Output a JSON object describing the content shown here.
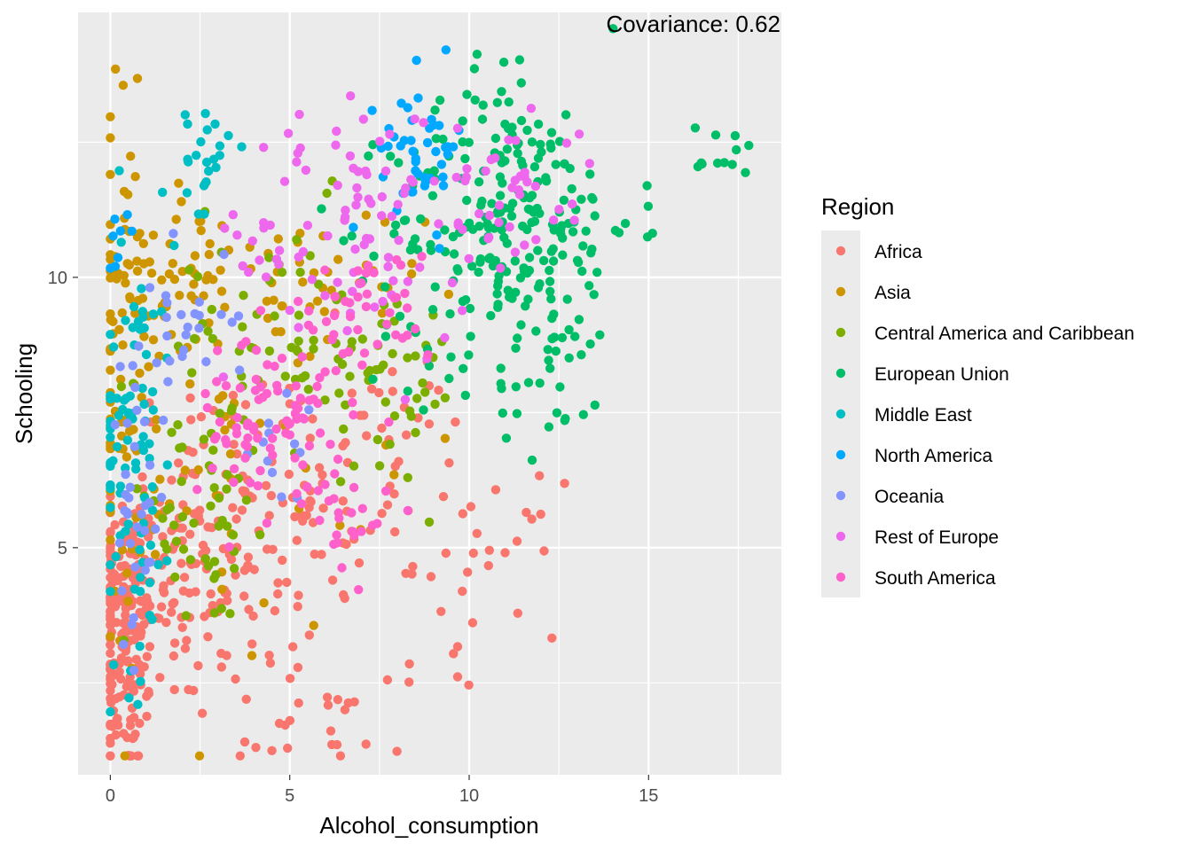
{
  "chart_data": {
    "type": "scatter",
    "title": "",
    "xlabel": "Alcohol_consumption",
    "ylabel": "Schooling",
    "xlim": [
      -0.9,
      18.7
    ],
    "ylim": [
      0.8,
      14.9
    ],
    "x_ticks": [
      0,
      5,
      10,
      15
    ],
    "y_ticks": [
      5,
      10
    ],
    "x_tick_labels": [
      "0",
      "5",
      "10",
      "15"
    ],
    "y_tick_labels": [
      "5",
      "10"
    ],
    "grid": true,
    "legend_title": "Region",
    "legend_position": "right",
    "annotation": "Covariance: 0.62",
    "background": "#ebebeb",
    "series": [
      {
        "name": "Africa",
        "color": "#F8766D",
        "clusters": [
          {
            "cx": 0.4,
            "cy": 3.4,
            "sx": 0.5,
            "sy": 1.4,
            "n": 170
          },
          {
            "cx": 1.8,
            "cy": 4.4,
            "sx": 1.2,
            "sy": 1.3,
            "n": 110
          },
          {
            "cx": 3.8,
            "cy": 5.6,
            "sx": 1.8,
            "sy": 1.2,
            "n": 80
          },
          {
            "cx": 6.5,
            "cy": 6.3,
            "sx": 2.0,
            "sy": 1.2,
            "n": 60
          },
          {
            "cx": 10.5,
            "cy": 4.8,
            "sx": 1.0,
            "sy": 0.7,
            "n": 25
          },
          {
            "cx": 6.0,
            "cy": 1.9,
            "sx": 2.3,
            "sy": 0.6,
            "n": 35
          }
        ]
      },
      {
        "name": "Asia",
        "color": "#CD9600",
        "clusters": [
          {
            "cx": 0.4,
            "cy": 8.0,
            "sx": 0.5,
            "sy": 2.8,
            "n": 80
          },
          {
            "cx": 1.8,
            "cy": 10.0,
            "sx": 0.9,
            "sy": 0.7,
            "n": 50
          },
          {
            "cx": 3.5,
            "cy": 7.4,
            "sx": 2.0,
            "sy": 2.0,
            "n": 55
          },
          {
            "cx": 5.5,
            "cy": 9.6,
            "sx": 1.6,
            "sy": 0.9,
            "n": 35
          }
        ]
      },
      {
        "name": "Central America and Caribbean",
        "color": "#7CAE00",
        "clusters": [
          {
            "cx": 2.5,
            "cy": 5.4,
            "sx": 1.2,
            "sy": 1.0,
            "n": 45
          },
          {
            "cx": 4.5,
            "cy": 8.6,
            "sx": 1.8,
            "sy": 1.3,
            "n": 70
          },
          {
            "cx": 7.5,
            "cy": 8.1,
            "sx": 1.5,
            "sy": 1.0,
            "n": 35
          }
        ]
      },
      {
        "name": "European Union",
        "color": "#00BE67",
        "clusters": [
          {
            "cx": 11.2,
            "cy": 11.0,
            "sx": 1.7,
            "sy": 1.1,
            "n": 210
          },
          {
            "cx": 11.0,
            "cy": 13.2,
            "sx": 0.8,
            "sy": 0.6,
            "n": 20
          },
          {
            "cx": 17.0,
            "cy": 12.3,
            "sx": 0.6,
            "sy": 0.3,
            "n": 12
          },
          {
            "cx": 12.3,
            "cy": 7.9,
            "sx": 0.9,
            "sy": 0.6,
            "n": 28
          },
          {
            "cx": 9.4,
            "cy": 8.7,
            "sx": 1.2,
            "sy": 0.6,
            "n": 20
          }
        ]
      },
      {
        "name": "Middle East",
        "color": "#00BFC4",
        "clusters": [
          {
            "cx": 0.6,
            "cy": 7.2,
            "sx": 0.6,
            "sy": 2.2,
            "n": 90
          },
          {
            "cx": 2.7,
            "cy": 12.2,
            "sx": 0.3,
            "sy": 0.5,
            "n": 22
          }
        ]
      },
      {
        "name": "North America",
        "color": "#00A9FF",
        "clusters": [
          {
            "cx": 8.7,
            "cy": 12.4,
            "sx": 0.6,
            "sy": 0.7,
            "n": 45
          },
          {
            "cx": 0.3,
            "cy": 10.9,
            "sx": 0.2,
            "sy": 0.3,
            "n": 8
          }
        ]
      },
      {
        "name": "Oceania",
        "color": "#8494FF",
        "clusters": [
          {
            "cx": 0.7,
            "cy": 5.6,
            "sx": 0.4,
            "sy": 1.3,
            "n": 35
          },
          {
            "cx": 2.0,
            "cy": 9.3,
            "sx": 0.7,
            "sy": 0.8,
            "n": 25
          },
          {
            "cx": 4.8,
            "cy": 6.7,
            "sx": 0.7,
            "sy": 0.5,
            "n": 12
          }
        ]
      },
      {
        "name": "Rest of Europe",
        "color": "#ED68ED",
        "clusters": [
          {
            "cx": 6.5,
            "cy": 12.1,
            "sx": 1.0,
            "sy": 0.5,
            "n": 25
          },
          {
            "cx": 10.5,
            "cy": 11.5,
            "sx": 1.6,
            "sy": 0.9,
            "n": 55
          },
          {
            "cx": 4.0,
            "cy": 10.8,
            "sx": 0.6,
            "sy": 0.6,
            "n": 15
          },
          {
            "cx": 7.0,
            "cy": 10.0,
            "sx": 1.3,
            "sy": 1.0,
            "n": 35
          }
        ]
      },
      {
        "name": "South America",
        "color": "#FF61CC",
        "clusters": [
          {
            "cx": 4.6,
            "cy": 7.4,
            "sx": 1.1,
            "sy": 0.9,
            "n": 85
          },
          {
            "cx": 7.2,
            "cy": 9.3,
            "sx": 0.9,
            "sy": 0.6,
            "n": 40
          },
          {
            "cx": 6.5,
            "cy": 5.7,
            "sx": 0.7,
            "sy": 0.6,
            "n": 25
          }
        ]
      }
    ]
  }
}
